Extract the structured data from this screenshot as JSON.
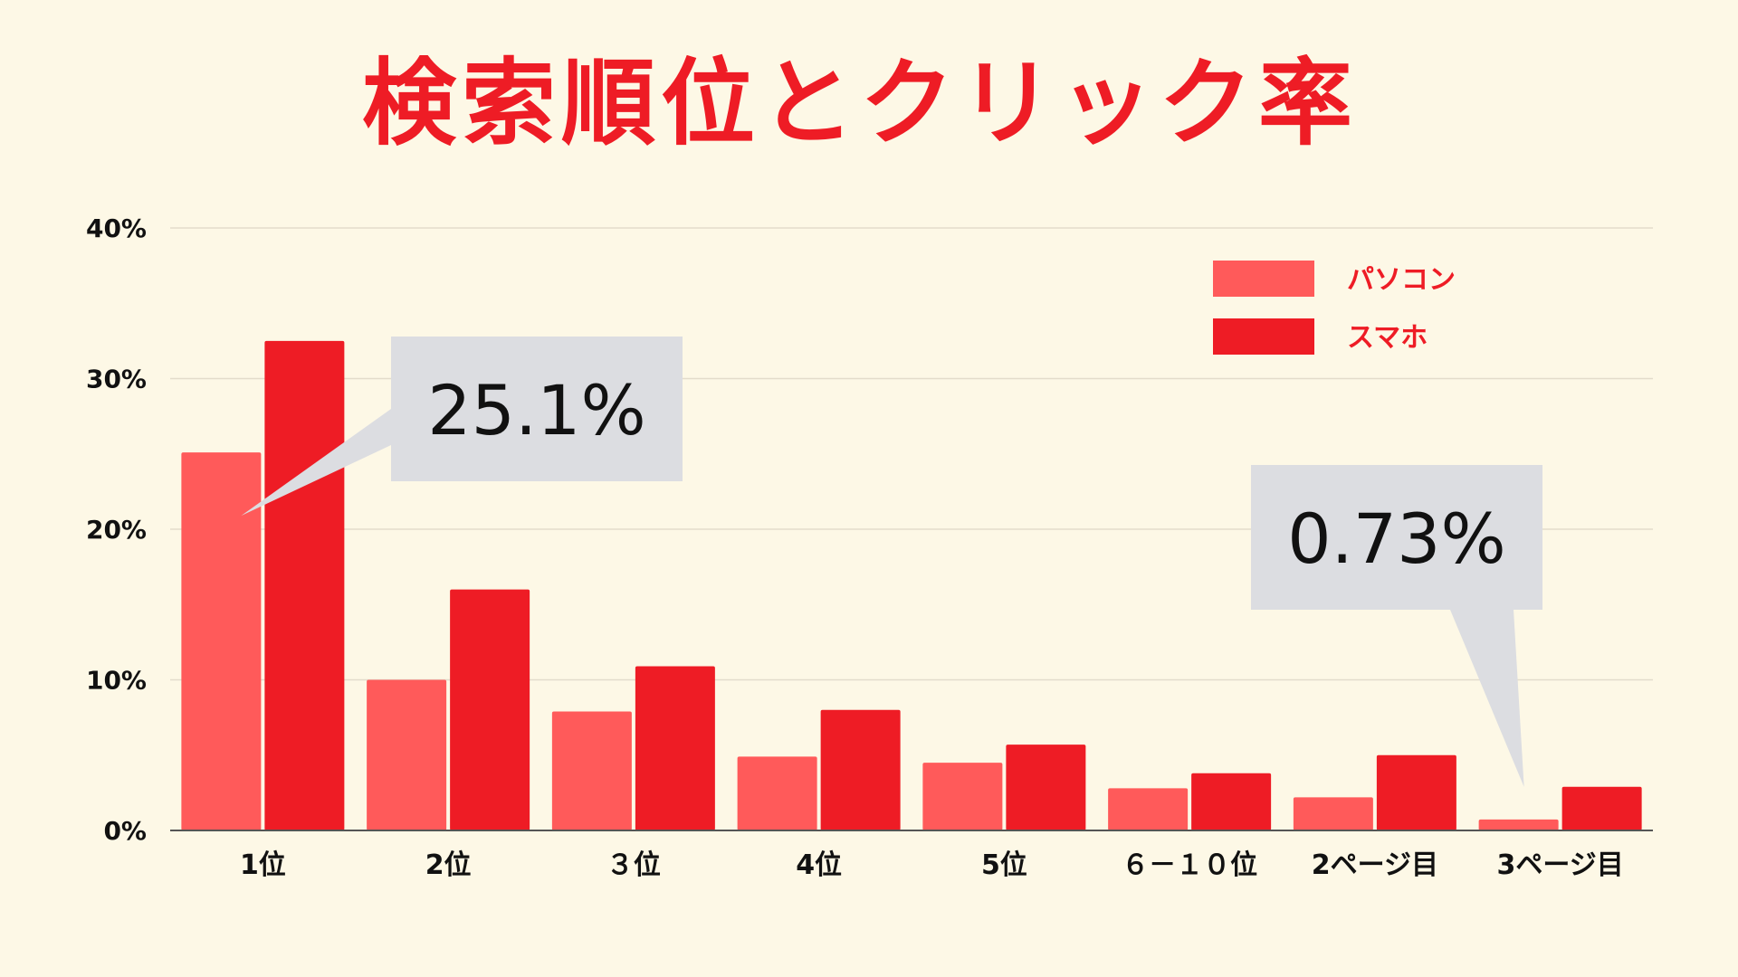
{
  "chart_data": {
    "type": "bar",
    "title": "検索順位とクリック率",
    "xlabel": "",
    "ylabel": "",
    "ylim": [
      0,
      40
    ],
    "yticks": [
      "0%",
      "10%",
      "20%",
      "30%",
      "40%"
    ],
    "ytick_values": [
      0,
      10,
      20,
      30,
      40
    ],
    "grid": true,
    "legend_position": "top-right",
    "categories": [
      "1位",
      "2位",
      "３位",
      "4位",
      "5位",
      "６－１０位",
      "2ページ目",
      "3ページ目"
    ],
    "series": [
      {
        "name": "パソコン",
        "color": "#ff5a5a",
        "values": [
          25.1,
          10.0,
          7.9,
          4.9,
          4.5,
          2.8,
          2.2,
          0.73
        ]
      },
      {
        "name": "スマホ",
        "color": "#ee1c25",
        "values": [
          32.5,
          16.0,
          10.9,
          8.0,
          5.7,
          3.8,
          5.0,
          2.9
        ]
      }
    ],
    "annotations": [
      {
        "text": "25.1%",
        "category_index": 0,
        "series_index": 0
      },
      {
        "text": "0.73%",
        "category_index": 7,
        "series_index": 0
      }
    ]
  },
  "colors": {
    "background": "#fdf8e6",
    "title": "#ee1c25",
    "grid": "#e3dccb",
    "axis": "#555555",
    "callout": "#dcdde1",
    "legend_text": "#ee1c25"
  }
}
